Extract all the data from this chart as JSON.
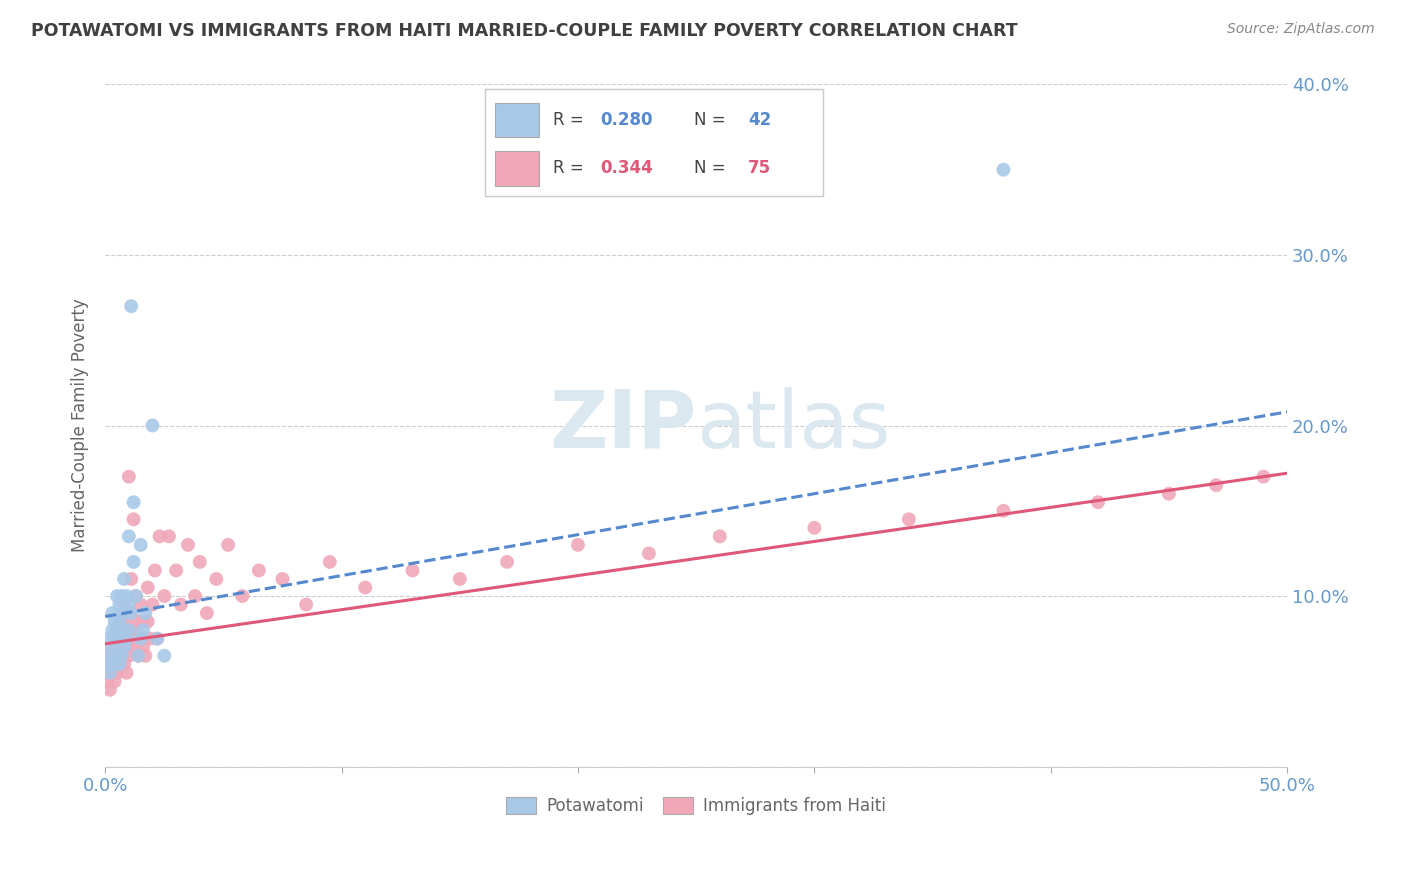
{
  "title": "POTAWATOMI VS IMMIGRANTS FROM HAITI MARRIED-COUPLE FAMILY POVERTY CORRELATION CHART",
  "source": "Source: ZipAtlas.com",
  "ylabel": "Married-Couple Family Poverty",
  "xlim": [
    0,
    0.5
  ],
  "ylim": [
    0,
    0.4
  ],
  "color_potawatomi": "#a8c8e8",
  "color_haiti": "#f0a8b8",
  "color_line_potawatomi": "#5588cc",
  "color_line_haiti": "#e05878",
  "color_axis": "#6699cc",
  "color_title": "#404040",
  "watermark_color": "#dce8f0",
  "pot_trendline": [
    0.0,
    0.5,
    0.088,
    0.208
  ],
  "haiti_trendline": [
    0.0,
    0.5,
    0.072,
    0.172
  ],
  "potawatomi_x": [
    0.001,
    0.001,
    0.002,
    0.002,
    0.003,
    0.003,
    0.003,
    0.004,
    0.004,
    0.004,
    0.005,
    0.005,
    0.005,
    0.006,
    0.006,
    0.006,
    0.006,
    0.007,
    0.007,
    0.007,
    0.008,
    0.008,
    0.008,
    0.009,
    0.009,
    0.01,
    0.01,
    0.01,
    0.011,
    0.011,
    0.012,
    0.012,
    0.013,
    0.014,
    0.015,
    0.015,
    0.016,
    0.017,
    0.02,
    0.022,
    0.025,
    0.38
  ],
  "potawatomi_y": [
    0.065,
    0.075,
    0.055,
    0.06,
    0.07,
    0.08,
    0.09,
    0.06,
    0.075,
    0.085,
    0.065,
    0.08,
    0.1,
    0.06,
    0.075,
    0.085,
    0.095,
    0.065,
    0.08,
    0.1,
    0.07,
    0.09,
    0.11,
    0.075,
    0.1,
    0.08,
    0.095,
    0.135,
    0.09,
    0.27,
    0.12,
    0.155,
    0.1,
    0.065,
    0.075,
    0.13,
    0.08,
    0.09,
    0.2,
    0.075,
    0.065,
    0.35
  ],
  "haiti_x": [
    0.001,
    0.001,
    0.002,
    0.002,
    0.003,
    0.003,
    0.003,
    0.004,
    0.004,
    0.005,
    0.005,
    0.005,
    0.006,
    0.006,
    0.007,
    0.007,
    0.008,
    0.008,
    0.008,
    0.009,
    0.009,
    0.009,
    0.01,
    0.01,
    0.01,
    0.011,
    0.011,
    0.011,
    0.012,
    0.012,
    0.013,
    0.013,
    0.014,
    0.014,
    0.015,
    0.015,
    0.016,
    0.016,
    0.017,
    0.018,
    0.018,
    0.019,
    0.02,
    0.021,
    0.022,
    0.023,
    0.025,
    0.027,
    0.03,
    0.032,
    0.035,
    0.038,
    0.04,
    0.043,
    0.047,
    0.052,
    0.058,
    0.065,
    0.075,
    0.085,
    0.095,
    0.11,
    0.13,
    0.15,
    0.17,
    0.2,
    0.23,
    0.26,
    0.3,
    0.34,
    0.38,
    0.42,
    0.45,
    0.47,
    0.49
  ],
  "haiti_y": [
    0.05,
    0.06,
    0.045,
    0.065,
    0.055,
    0.07,
    0.06,
    0.05,
    0.075,
    0.055,
    0.065,
    0.08,
    0.06,
    0.075,
    0.065,
    0.085,
    0.06,
    0.075,
    0.095,
    0.055,
    0.07,
    0.085,
    0.065,
    0.08,
    0.17,
    0.075,
    0.09,
    0.11,
    0.07,
    0.145,
    0.08,
    0.1,
    0.065,
    0.085,
    0.075,
    0.095,
    0.07,
    0.085,
    0.065,
    0.085,
    0.105,
    0.075,
    0.095,
    0.115,
    0.075,
    0.135,
    0.1,
    0.135,
    0.115,
    0.095,
    0.13,
    0.1,
    0.12,
    0.09,
    0.11,
    0.13,
    0.1,
    0.115,
    0.11,
    0.095,
    0.12,
    0.105,
    0.115,
    0.11,
    0.12,
    0.13,
    0.125,
    0.135,
    0.14,
    0.145,
    0.15,
    0.155,
    0.16,
    0.165,
    0.17
  ]
}
